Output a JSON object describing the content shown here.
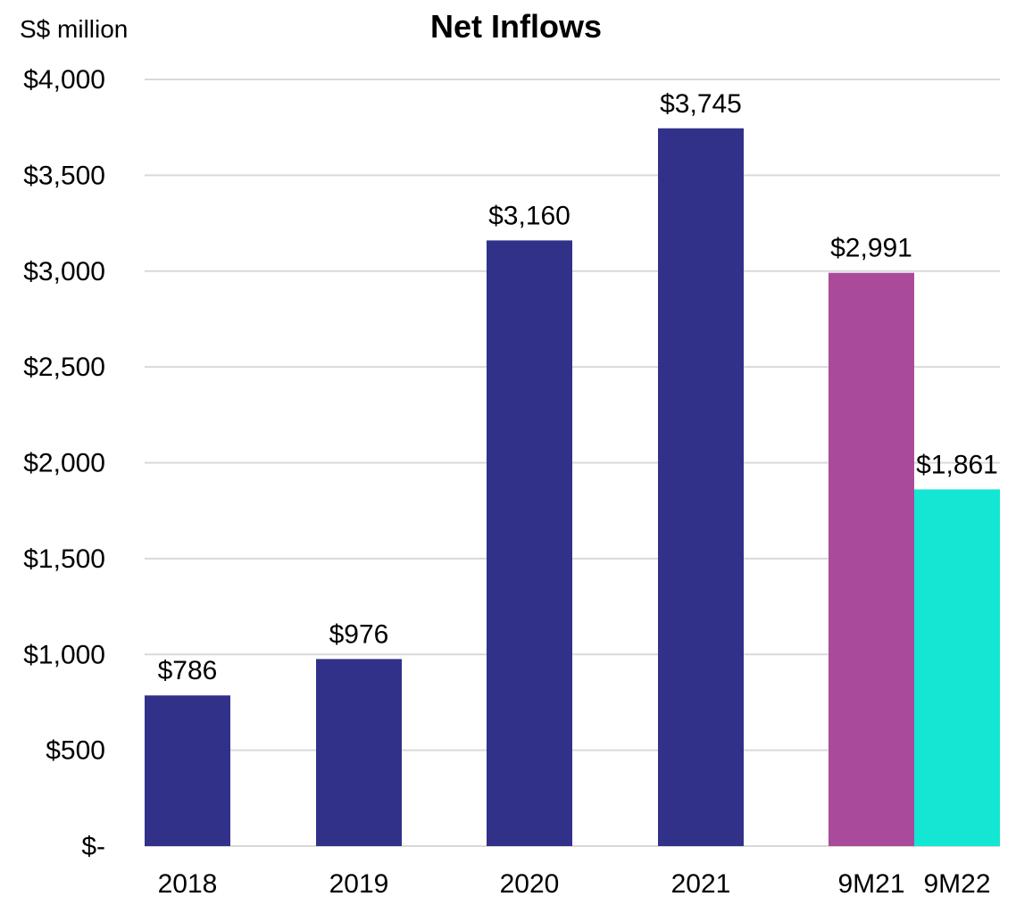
{
  "chart_data": {
    "type": "bar",
    "title": "Net Inflows",
    "unit_label": "S$ million",
    "xlabel": "",
    "ylabel": "",
    "ylim": [
      0,
      4000
    ],
    "yticks": [
      0,
      500,
      1000,
      1500,
      2000,
      2500,
      3000,
      3500,
      4000
    ],
    "ytick_labels": [
      "$-",
      "$500",
      "$1,000",
      "$1,500",
      "$2,000",
      "$2,500",
      "$3,000",
      "$3,500",
      "$4,000"
    ],
    "grid": true,
    "legend": "none",
    "categories": [
      "2018",
      "2019",
      "2020",
      "2021",
      "9M21",
      "9M22"
    ],
    "values": [
      786,
      976,
      3160,
      3745,
      2991,
      1861
    ],
    "value_labels": [
      "$786",
      "$976",
      "$3,160",
      "$3,745",
      "$2,991",
      "$1,861"
    ],
    "colors": [
      "#31318a",
      "#31318a",
      "#31318a",
      "#31318a",
      "#aa4a9a",
      "#14e6d4"
    ]
  }
}
